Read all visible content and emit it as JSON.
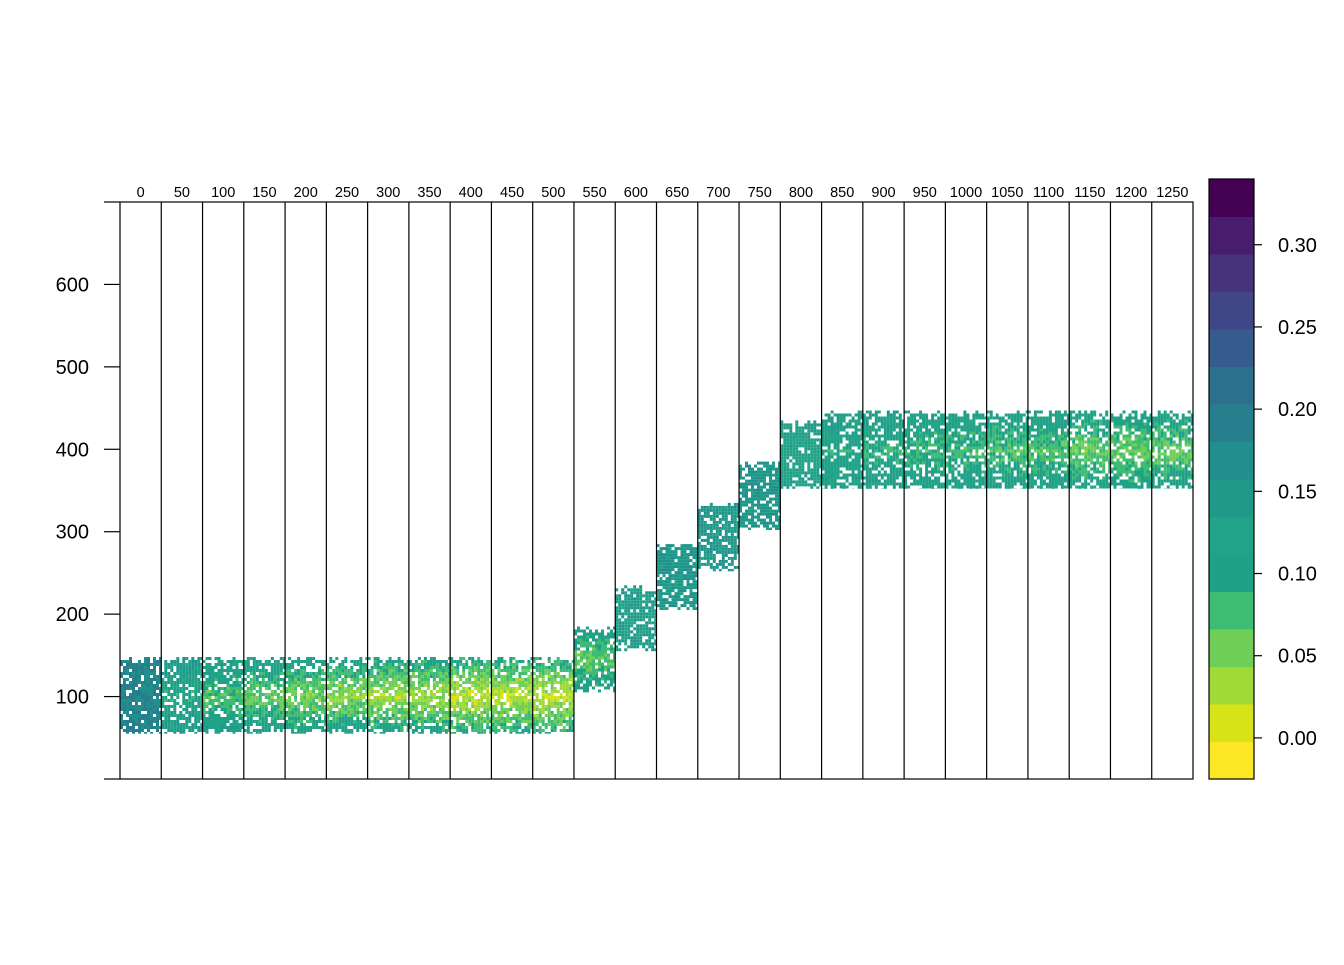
{
  "chart_data": {
    "type": "heatmap",
    "title": "",
    "xlabel": "",
    "ylabel": "",
    "panel_labels": [
      "0",
      "50",
      "100",
      "150",
      "200",
      "250",
      "300",
      "350",
      "400",
      "450",
      "500",
      "550",
      "600",
      "650",
      "700",
      "750",
      "800",
      "850",
      "900",
      "950",
      "1000",
      "1050",
      "1100",
      "1150",
      "1200",
      "1250"
    ],
    "ylim": [
      0,
      700
    ],
    "yticks": [
      100,
      200,
      300,
      400,
      500,
      600
    ],
    "y_tick_labels": [
      "100",
      "200",
      "300",
      "400",
      "500",
      "600"
    ],
    "grid": false,
    "panels": [
      {
        "label": "0",
        "y_min": 55,
        "y_max": 148,
        "value_center": 0.18,
        "value_edge": 0.18
      },
      {
        "label": "50",
        "y_min": 55,
        "y_max": 148,
        "value_center": 0.1,
        "value_edge": 0.15
      },
      {
        "label": "100",
        "y_min": 55,
        "y_max": 148,
        "value_center": 0.07,
        "value_edge": 0.14
      },
      {
        "label": "150",
        "y_min": 55,
        "y_max": 148,
        "value_center": 0.06,
        "value_edge": 0.13
      },
      {
        "label": "200",
        "y_min": 55,
        "y_max": 148,
        "value_center": 0.05,
        "value_edge": 0.12
      },
      {
        "label": "250",
        "y_min": 55,
        "y_max": 148,
        "value_center": 0.04,
        "value_edge": 0.12
      },
      {
        "label": "300",
        "y_min": 55,
        "y_max": 148,
        "value_center": 0.03,
        "value_edge": 0.11
      },
      {
        "label": "350",
        "y_min": 55,
        "y_max": 148,
        "value_center": 0.03,
        "value_edge": 0.11
      },
      {
        "label": "400",
        "y_min": 55,
        "y_max": 148,
        "value_center": 0.02,
        "value_edge": 0.1
      },
      {
        "label": "450",
        "y_min": 55,
        "y_max": 148,
        "value_center": 0.02,
        "value_edge": 0.1
      },
      {
        "label": "500",
        "y_min": 55,
        "y_max": 148,
        "value_center": 0.02,
        "value_edge": 0.1
      },
      {
        "label": "550",
        "y_min": 105,
        "y_max": 185,
        "value_center": 0.06,
        "value_edge": 0.12
      },
      {
        "label": "600",
        "y_min": 155,
        "y_max": 235,
        "value_center": 0.13,
        "value_edge": 0.15
      },
      {
        "label": "650",
        "y_min": 205,
        "y_max": 285,
        "value_center": 0.15,
        "value_edge": 0.15
      },
      {
        "label": "700",
        "y_min": 252,
        "y_max": 335,
        "value_center": 0.15,
        "value_edge": 0.15
      },
      {
        "label": "750",
        "y_min": 302,
        "y_max": 385,
        "value_center": 0.15,
        "value_edge": 0.15
      },
      {
        "label": "800",
        "y_min": 352,
        "y_max": 435,
        "value_center": 0.11,
        "value_edge": 0.14
      },
      {
        "label": "850",
        "y_min": 352,
        "y_max": 447,
        "value_center": 0.1,
        "value_edge": 0.14
      },
      {
        "label": "900",
        "y_min": 352,
        "y_max": 447,
        "value_center": 0.09,
        "value_edge": 0.14
      },
      {
        "label": "950",
        "y_min": 352,
        "y_max": 447,
        "value_center": 0.08,
        "value_edge": 0.13
      },
      {
        "label": "1000",
        "y_min": 352,
        "y_max": 447,
        "value_center": 0.08,
        "value_edge": 0.13
      },
      {
        "label": "1050",
        "y_min": 352,
        "y_max": 447,
        "value_center": 0.07,
        "value_edge": 0.13
      },
      {
        "label": "1100",
        "y_min": 352,
        "y_max": 447,
        "value_center": 0.07,
        "value_edge": 0.13
      },
      {
        "label": "1150",
        "y_min": 352,
        "y_max": 447,
        "value_center": 0.06,
        "value_edge": 0.12
      },
      {
        "label": "1200",
        "y_min": 352,
        "y_max": 447,
        "value_center": 0.06,
        "value_edge": 0.12
      },
      {
        "label": "1250",
        "y_min": 352,
        "y_max": 447,
        "value_center": 0.06,
        "value_edge": 0.12
      }
    ],
    "colorbar": {
      "range": [
        -0.025,
        0.34
      ],
      "ticks": [
        0.0,
        0.05,
        0.1,
        0.15,
        0.2,
        0.25,
        0.3
      ],
      "tick_labels": [
        "0.00",
        "0.05",
        "0.10",
        "0.15",
        "0.20",
        "0.25",
        "0.30"
      ],
      "colors": [
        "#FDE725",
        "#D8E219",
        "#A0DA39",
        "#6ECE58",
        "#3FBC73",
        "#1FA187",
        "#20A386",
        "#1F9A8A",
        "#21908C",
        "#277F8E",
        "#2D708E",
        "#365C8D",
        "#3F4788",
        "#46337E",
        "#481C6E",
        "#440154"
      ]
    }
  }
}
